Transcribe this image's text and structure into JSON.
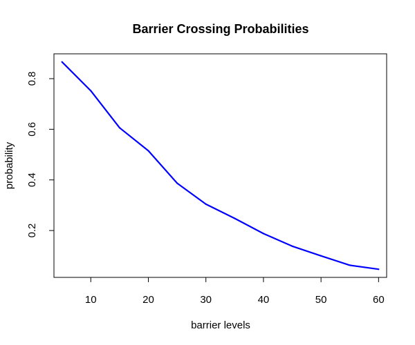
{
  "chart_data": {
    "type": "line",
    "title": "Barrier Crossing Probabilities",
    "xlabel": "barrier levels",
    "ylabel": "probability",
    "x": [
      5,
      10,
      15,
      20,
      25,
      30,
      35,
      40,
      45,
      50,
      55,
      60
    ],
    "series": [
      {
        "values": [
          0.866,
          0.752,
          0.606,
          0.515,
          0.387,
          0.304,
          0.248,
          0.188,
          0.138,
          0.1,
          0.063,
          0.047
        ],
        "color": "#0000ff"
      }
    ],
    "xticks": [
      10,
      20,
      30,
      40,
      50,
      60
    ],
    "yticks": [
      0.2,
      0.4,
      0.6,
      0.8
    ],
    "xlim": [
      3.6,
      61.4
    ],
    "ylim": [
      0.0149,
      0.8981
    ],
    "grid": false,
    "legend": "none"
  }
}
